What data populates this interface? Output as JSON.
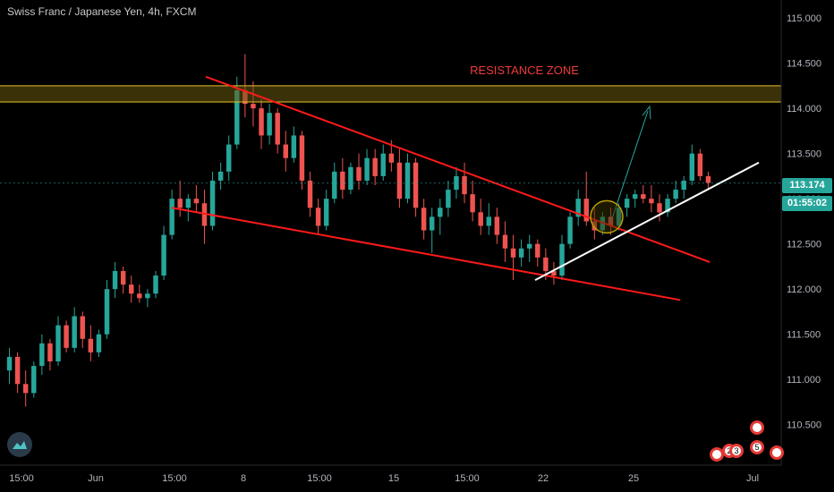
{
  "header": {
    "title": "Swiss Franc / Japanese Yen, 4h, FXCM"
  },
  "annotation": {
    "resistance_label": "RESISTANCE ZONE"
  },
  "price_scale": {
    "current_price": "113.174",
    "countdown": "01:55:02",
    "badge_color": "#26a69a"
  },
  "events": [
    "",
    "2",
    "3",
    "",
    "5",
    ""
  ],
  "colors": {
    "up": "#26a69a",
    "down": "#ef5350",
    "zone": "#e6c229",
    "trend": "#ff1a1a",
    "support": "#ffffff",
    "projection": "#26a69a"
  },
  "chart_data": {
    "type": "candlestick",
    "title": "Swiss Franc / Japanese Yen, 4h, FXCM",
    "ylim": [
      110.25,
      115.1
    ],
    "y_ticks": [
      "115.000",
      "114.500",
      "114.000",
      "113.500",
      "113.000",
      "112.500",
      "112.000",
      "111.500",
      "111.000",
      "110.500"
    ],
    "x_ticks": [
      "15:00",
      "Jun",
      "15:00",
      "8",
      "15:00",
      "15",
      "15:00",
      "22",
      "25",
      "Jul"
    ],
    "resistance_zone": [
      114.07,
      114.25
    ],
    "current_price": 113.174,
    "ohlc": [
      [
        111.1,
        111.35,
        110.95,
        111.25
      ],
      [
        111.25,
        111.3,
        110.85,
        110.95
      ],
      [
        110.95,
        111.1,
        110.7,
        110.85
      ],
      [
        110.85,
        111.2,
        110.8,
        111.15
      ],
      [
        111.15,
        111.5,
        111.05,
        111.4
      ],
      [
        111.4,
        111.45,
        111.1,
        111.2
      ],
      [
        111.2,
        111.7,
        111.15,
        111.6
      ],
      [
        111.6,
        111.65,
        111.3,
        111.35
      ],
      [
        111.35,
        111.8,
        111.3,
        111.7
      ],
      [
        111.7,
        111.75,
        111.35,
        111.45
      ],
      [
        111.45,
        111.6,
        111.2,
        111.3
      ],
      [
        111.3,
        111.55,
        111.25,
        111.5
      ],
      [
        111.5,
        112.1,
        111.45,
        112.0
      ],
      [
        112.0,
        112.3,
        111.9,
        112.2
      ],
      [
        112.2,
        112.25,
        111.95,
        112.05
      ],
      [
        112.05,
        112.15,
        111.85,
        111.95
      ],
      [
        111.95,
        112.05,
        111.85,
        111.9
      ],
      [
        111.9,
        112.0,
        111.8,
        111.95
      ],
      [
        111.95,
        112.2,
        111.9,
        112.15
      ],
      [
        112.15,
        112.7,
        112.1,
        112.6
      ],
      [
        112.6,
        113.1,
        112.55,
        113.0
      ],
      [
        113.0,
        113.2,
        112.8,
        112.9
      ],
      [
        112.9,
        113.05,
        112.75,
        113.0
      ],
      [
        113.0,
        113.15,
        112.85,
        112.95
      ],
      [
        112.95,
        113.1,
        112.5,
        112.7
      ],
      [
        112.7,
        113.3,
        112.65,
        113.2
      ],
      [
        113.2,
        113.4,
        113.1,
        113.3
      ],
      [
        113.3,
        113.7,
        113.2,
        113.6
      ],
      [
        113.6,
        114.35,
        113.55,
        114.2
      ],
      [
        114.2,
        114.6,
        113.9,
        114.05
      ],
      [
        114.05,
        114.3,
        113.8,
        114.0
      ],
      [
        114.0,
        114.1,
        113.55,
        113.7
      ],
      [
        113.7,
        114.05,
        113.6,
        113.95
      ],
      [
        113.95,
        114.0,
        113.5,
        113.6
      ],
      [
        113.6,
        113.75,
        113.3,
        113.45
      ],
      [
        113.45,
        113.8,
        113.4,
        113.7
      ],
      [
        113.7,
        113.75,
        113.1,
        113.2
      ],
      [
        113.2,
        113.3,
        112.8,
        112.9
      ],
      [
        112.9,
        113.0,
        112.6,
        112.7
      ],
      [
        112.7,
        113.1,
        112.65,
        113.0
      ],
      [
        113.0,
        113.4,
        112.95,
        113.3
      ],
      [
        113.3,
        113.45,
        113.0,
        113.1
      ],
      [
        113.1,
        113.4,
        113.05,
        113.35
      ],
      [
        113.35,
        113.5,
        113.1,
        113.2
      ],
      [
        113.2,
        113.55,
        113.15,
        113.45
      ],
      [
        113.45,
        113.55,
        113.15,
        113.25
      ],
      [
        113.25,
        113.6,
        113.2,
        113.5
      ],
      [
        113.5,
        113.65,
        113.3,
        113.4
      ],
      [
        113.4,
        113.55,
        112.9,
        113.0
      ],
      [
        113.0,
        113.5,
        112.95,
        113.4
      ],
      [
        113.4,
        113.45,
        112.8,
        112.9
      ],
      [
        112.9,
        113.0,
        112.55,
        112.65
      ],
      [
        112.65,
        112.9,
        112.4,
        112.8
      ],
      [
        112.8,
        113.0,
        112.6,
        112.9
      ],
      [
        112.9,
        113.2,
        112.8,
        113.1
      ],
      [
        113.1,
        113.35,
        113.0,
        113.25
      ],
      [
        113.25,
        113.4,
        112.95,
        113.05
      ],
      [
        113.05,
        113.2,
        112.75,
        112.85
      ],
      [
        112.85,
        113.0,
        112.6,
        112.7
      ],
      [
        112.7,
        112.95,
        112.6,
        112.8
      ],
      [
        112.8,
        112.9,
        112.5,
        112.6
      ],
      [
        112.6,
        112.75,
        112.3,
        112.45
      ],
      [
        112.45,
        112.6,
        112.1,
        112.35
      ],
      [
        112.35,
        112.55,
        112.25,
        112.45
      ],
      [
        112.45,
        112.6,
        112.3,
        112.5
      ],
      [
        112.5,
        112.55,
        112.25,
        112.35
      ],
      [
        112.35,
        112.45,
        112.1,
        112.2
      ],
      [
        112.2,
        112.3,
        112.05,
        112.15
      ],
      [
        112.15,
        112.6,
        112.1,
        112.5
      ],
      [
        112.5,
        112.85,
        112.45,
        112.8
      ],
      [
        112.8,
        113.1,
        112.7,
        113.0
      ],
      [
        113.0,
        113.3,
        112.7,
        112.75
      ],
      [
        112.75,
        112.9,
        112.55,
        112.65
      ],
      [
        112.65,
        112.85,
        112.6,
        112.8
      ],
      [
        112.8,
        112.9,
        112.6,
        112.7
      ],
      [
        112.7,
        112.95,
        112.65,
        112.9
      ],
      [
        112.9,
        113.05,
        112.8,
        113.0
      ],
      [
        113.0,
        113.1,
        112.9,
        113.05
      ],
      [
        113.05,
        113.15,
        112.95,
        113.0
      ],
      [
        113.0,
        113.15,
        112.85,
        112.95
      ],
      [
        112.95,
        113.05,
        112.75,
        112.85
      ],
      [
        112.85,
        113.05,
        112.8,
        113.0
      ],
      [
        113.0,
        113.2,
        112.95,
        113.1
      ],
      [
        113.1,
        113.25,
        113.0,
        113.2
      ],
      [
        113.2,
        113.6,
        113.15,
        113.5
      ],
      [
        113.5,
        113.55,
        113.2,
        113.25
      ],
      [
        113.25,
        113.3,
        113.1,
        113.174
      ]
    ]
  }
}
